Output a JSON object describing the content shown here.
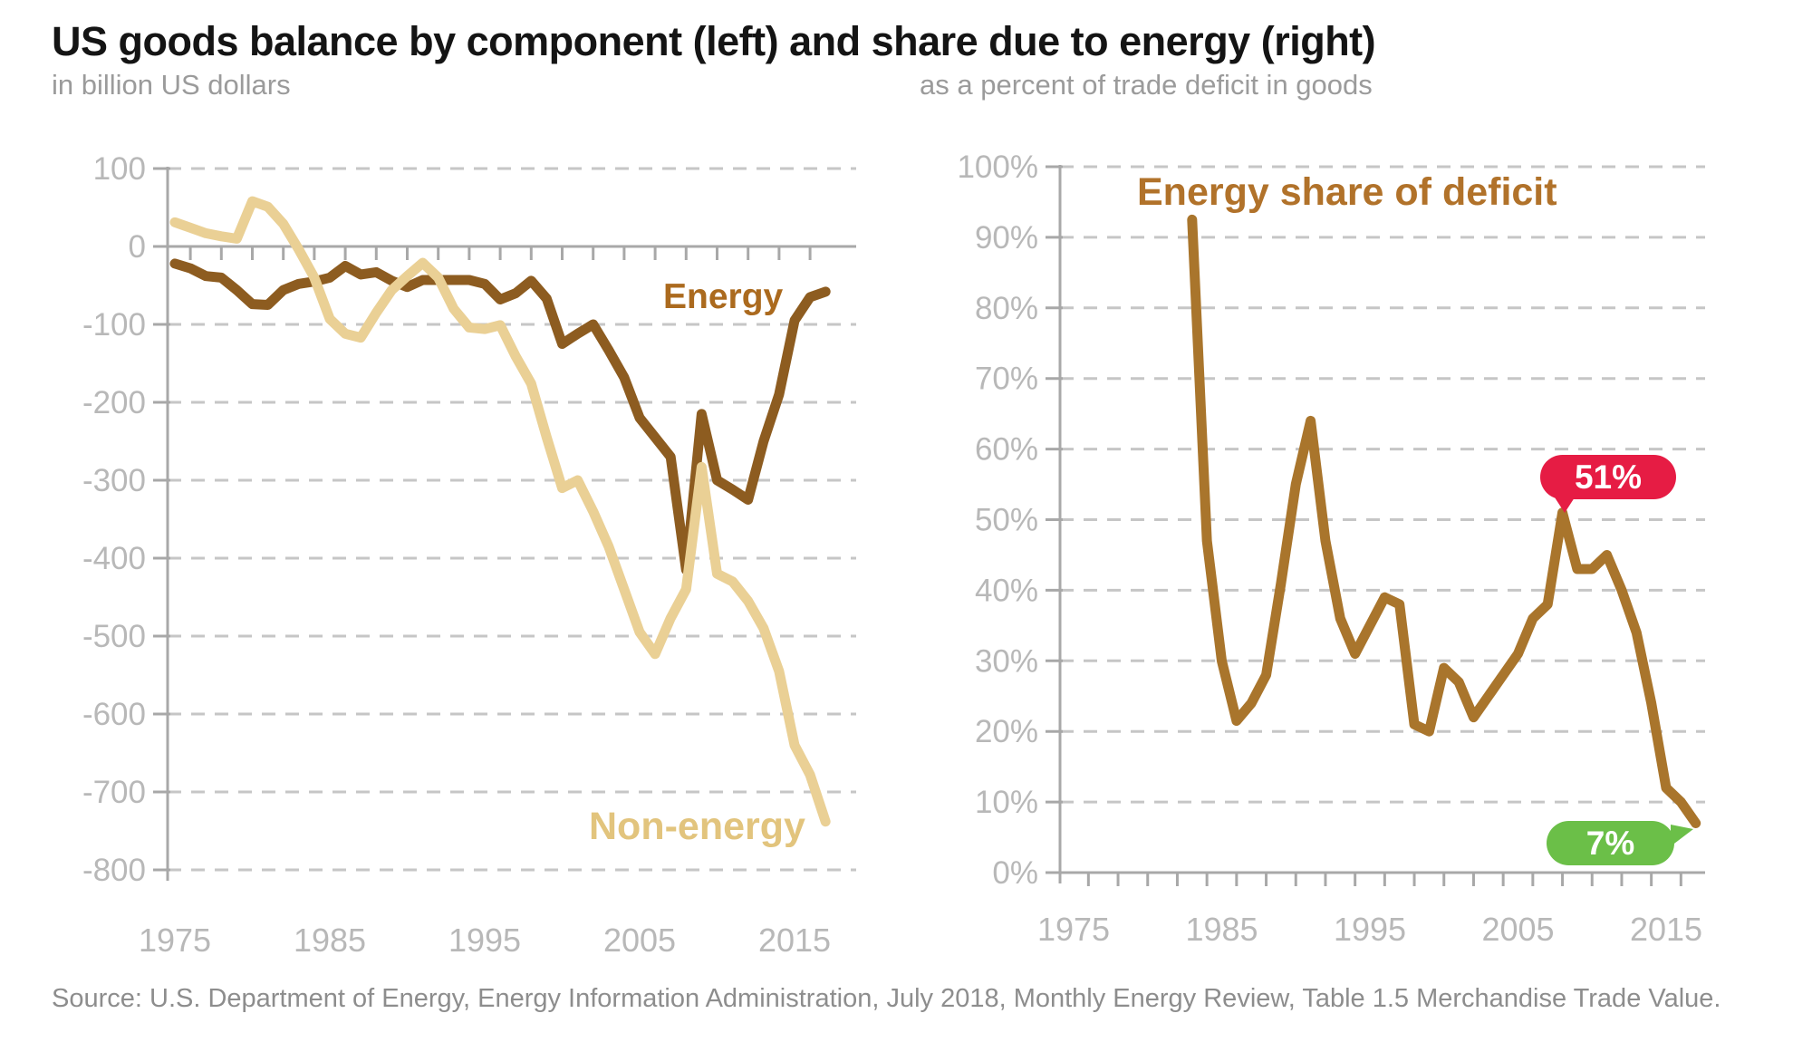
{
  "title": "US goods balance by component (left) and share due to energy (right)",
  "subtitle_left": "in billion US dollars",
  "subtitle_right": "as a percent of trade deficit in goods",
  "source": "Source: U.S. Department of Energy, Energy Information Administration, July 2018, Monthly Energy Review, Table 1.5 Merchandise Trade Value.",
  "colors": {
    "energy_line": "#8d5c20",
    "energy_label": "#ab6a1e",
    "nonenergy_line": "#ead095",
    "nonenergy_label": "#e2c47d",
    "share_line": "#a9752c",
    "share_label": "#b1722a",
    "badge_red": "#e61c44",
    "badge_green": "#6bbf48",
    "badge_text": "#ffffff",
    "axis": "#a8a8a8",
    "grid": "#c6c6c6",
    "tick_label": "#b8b8b8"
  },
  "chart_data": [
    {
      "id": "goods-balance-by-component",
      "type": "line",
      "title": "US goods balance by component",
      "ylabel": "in billion US dollars",
      "ylim": [
        -800,
        100
      ],
      "yticks": [
        100,
        0,
        -100,
        -200,
        -300,
        -400,
        -500,
        -600,
        -700,
        -800
      ],
      "xticks": [
        1975,
        1985,
        1995,
        2005,
        2015
      ],
      "grid": true,
      "legend_position": "inline-labels",
      "years": [
        1975,
        1976,
        1977,
        1978,
        1979,
        1980,
        1981,
        1982,
        1983,
        1984,
        1985,
        1986,
        1987,
        1988,
        1989,
        1990,
        1991,
        1992,
        1993,
        1994,
        1995,
        1996,
        1997,
        1998,
        1999,
        2000,
        2001,
        2002,
        2003,
        2004,
        2005,
        2006,
        2007,
        2008,
        2009,
        2010,
        2011,
        2012,
        2013,
        2014,
        2015,
        2016,
        2017
      ],
      "series": [
        {
          "name": "Energy",
          "color": "#8d5c20",
          "values": [
            -22,
            -28,
            -38,
            -40,
            -56,
            -74,
            -75,
            -56,
            -48,
            -45,
            -40,
            -25,
            -36,
            -33,
            -44,
            -52,
            -43,
            -43,
            -43,
            -43,
            -48,
            -68,
            -60,
            -44,
            -67,
            -125,
            -112,
            -100,
            -133,
            -168,
            -220,
            -245,
            -270,
            -415,
            -215,
            -300,
            -312,
            -325,
            -250,
            -190,
            -95,
            -65,
            -58
          ]
        },
        {
          "name": "Non-energy",
          "color": "#ead095",
          "values": [
            31,
            24,
            17,
            13,
            10,
            58,
            51,
            29,
            -4,
            -40,
            -93,
            -112,
            -117,
            -85,
            -56,
            -38,
            -21,
            -40,
            -80,
            -104,
            -106,
            -101,
            -141,
            -176,
            -245,
            -310,
            -300,
            -340,
            -385,
            -440,
            -495,
            -523,
            -477,
            -440,
            -283,
            -420,
            -430,
            -455,
            -490,
            -545,
            -640,
            -678,
            -738
          ]
        }
      ]
    },
    {
      "id": "energy-share-of-deficit",
      "type": "line",
      "title": "Energy share of deficit",
      "ylabel": "as a percent of trade deficit in goods",
      "ylim": [
        0,
        100
      ],
      "yticks": [
        100,
        90,
        80,
        70,
        60,
        50,
        40,
        30,
        20,
        10,
        0
      ],
      "ytick_suffix": "%",
      "xticks": [
        1975,
        1985,
        1995,
        2005,
        2015
      ],
      "grid": true,
      "years": [
        1983,
        1984,
        1985,
        1986,
        1987,
        1988,
        1989,
        1990,
        1991,
        1992,
        1993,
        1994,
        1995,
        1996,
        1997,
        1998,
        1999,
        2000,
        2001,
        2002,
        2003,
        2004,
        2005,
        2006,
        2007,
        2008,
        2009,
        2010,
        2011,
        2012,
        2013,
        2014,
        2015,
        2016,
        2017
      ],
      "series": [
        {
          "name": "Energy share of deficit",
          "color": "#a9752c",
          "values": [
            92.5,
            47,
            30,
            21.5,
            24,
            28,
            41,
            55,
            64,
            47,
            36,
            31,
            35,
            39,
            38,
            21,
            20,
            29,
            27,
            22,
            25,
            28,
            31,
            36,
            38,
            51,
            43,
            43,
            45,
            40,
            34,
            24,
            12,
            10,
            7
          ]
        }
      ],
      "annotations": [
        {
          "text": "51%",
          "year": 2008,
          "value": 51,
          "color": "#e61c44"
        },
        {
          "text": "7%",
          "year": 2017,
          "value": 7,
          "color": "#6bbf48"
        }
      ]
    }
  ]
}
